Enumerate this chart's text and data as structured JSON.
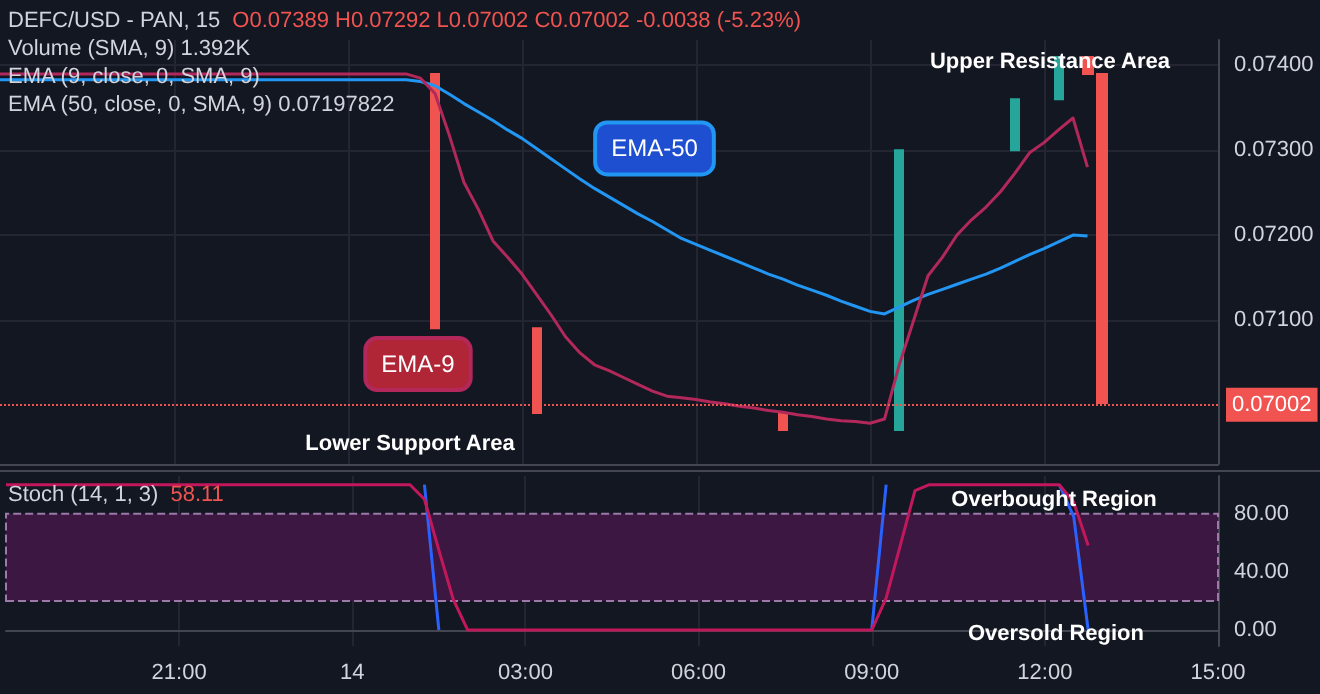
{
  "chart_data": [
    {
      "type": "candlestick",
      "title": "DEFC/USD - PAN, 15",
      "annotations": [
        "O0.07389 H0.07292 L0.07002 C0.07002 -0.0038 (-5.23%)",
        "Volume (SMA, 9) 1.392K",
        "EMA (9, close, 0, SMA, 9)",
        "EMA (50, close, 0, SMA, 9) 0.07197822",
        "Upper Resistance Area",
        "Lower Support Area"
      ],
      "categories": [
        null,
        null,
        null,
        null,
        null,
        null,
        null,
        null,
        null,
        null,
        null,
        null,
        null,
        null,
        null,
        null,
        null,
        null,
        null,
        null,
        null,
        null,
        null,
        null,
        null,
        null,
        null,
        null,
        null,
        null,
        null,
        null,
        null,
        null,
        null,
        null,
        null,
        null,
        null,
        null,
        null,
        null,
        null,
        null,
        null,
        null,
        null,
        null,
        null,
        null,
        null,
        null,
        null,
        null,
        null,
        null,
        null,
        null,
        null,
        null,
        null,
        null,
        null,
        null,
        null,
        null,
        null,
        null,
        null,
        null,
        null,
        null,
        null,
        null,
        null,
        null,
        null,
        null,
        null,
        null,
        null,
        null,
        null,
        null,
        null
      ],
      "ohlc": [
        null,
        null,
        null,
        null,
        null,
        null,
        null,
        null,
        null,
        null,
        null,
        null,
        null,
        null,
        null,
        null,
        null,
        null,
        null,
        null,
        null,
        null,
        null,
        null,
        null,
        null,
        null,
        null,
        null,
        null,
        [
          0.0739,
          0.0739,
          0.0709,
          0.0709
        ],
        null,
        null,
        null,
        null,
        null,
        null,
        [
          0.0709,
          0.0709,
          0.0699,
          0.0699
        ],
        null,
        null,
        null,
        null,
        null,
        null,
        null,
        null,
        null,
        null,
        null,
        null,
        null,
        null,
        null,
        null,
        [
          0.0699,
          0.0699,
          0.0697,
          0.0697
        ],
        null,
        null,
        null,
        null,
        null,
        null,
        null,
        [
          0.0697,
          0.073,
          0.0697,
          0.073
        ],
        null,
        null,
        null,
        null,
        null,
        null,
        null,
        [
          0.073,
          0.0736,
          0.073,
          0.0736
        ],
        null,
        null,
        [
          0.0736,
          0.0741,
          0.0736,
          0.0741
        ],
        null,
        [
          0.0741,
          0.0741,
          0.0739,
          0.0739
        ],
        [
          0.0739,
          0.0739,
          0.07002,
          0.07002
        ],
        null,
        null,
        null,
        null,
        null,
        null,
        null,
        null
      ],
      "colors": [
        null,
        null,
        null,
        null,
        null,
        null,
        null,
        null,
        null,
        null,
        null,
        null,
        null,
        null,
        null,
        null,
        null,
        null,
        null,
        null,
        null,
        null,
        null,
        null,
        null,
        null,
        null,
        null,
        null,
        null,
        "#f05350",
        null,
        null,
        null,
        null,
        null,
        null,
        "#f05350",
        null,
        null,
        null,
        null,
        null,
        null,
        null,
        null,
        null,
        null,
        null,
        null,
        null,
        null,
        null,
        null,
        "#f05350",
        null,
        null,
        null,
        null,
        null,
        null,
        null,
        "#26a69a",
        null,
        null,
        null,
        null,
        null,
        null,
        null,
        "#26a69a",
        null,
        null,
        "#26a69a",
        null,
        "#f05350",
        "#f05350",
        null,
        null,
        null,
        null,
        null,
        null,
        null,
        null
      ],
      "series": [
        {
          "name": "EMA-50",
          "type": "line",
          "color": "#2196f3",
          "values": [
            0.07383,
            0.07383,
            0.07383,
            0.07383,
            0.07383,
            0.07383,
            0.07383,
            0.07383,
            0.07383,
            0.07383,
            0.07383,
            0.07383,
            0.07383,
            0.07383,
            0.07383,
            0.07383,
            0.07383,
            0.07383,
            0.07383,
            0.07383,
            0.07383,
            0.07383,
            0.07383,
            0.07383,
            0.07383,
            0.07383,
            0.07383,
            0.07383,
            0.07383,
            0.07381,
            0.07376,
            0.07366,
            0.07355,
            0.07345,
            0.07335,
            0.07324,
            0.07314,
            0.07302,
            0.0729,
            0.07278,
            0.07266,
            0.07255,
            0.07245,
            0.07235,
            0.07225,
            0.07216,
            0.07206,
            0.07196,
            0.07189,
            0.07182,
            0.07175,
            0.07168,
            0.07161,
            0.07154,
            0.07148,
            0.07141,
            0.07135,
            0.07129,
            0.07122,
            0.07116,
            0.0711,
            0.07107,
            0.07115,
            0.07123,
            0.0713,
            0.07136,
            0.07142,
            0.07148,
            0.07154,
            0.07161,
            0.07169,
            0.07177,
            0.07184,
            0.07192,
            0.072,
            0.07199,
            null,
            null,
            null,
            null,
            null,
            null,
            null,
            null,
            null
          ]
        },
        {
          "name": "EMA-9",
          "type": "line",
          "color": "#b2285a",
          "values": [
            0.0739,
            0.0739,
            0.0739,
            0.0739,
            0.0739,
            0.0739,
            0.0739,
            0.0739,
            0.0739,
            0.0739,
            0.0739,
            0.0739,
            0.0739,
            0.0739,
            0.0739,
            0.0739,
            0.0739,
            0.0739,
            0.0739,
            0.0739,
            0.0739,
            0.0739,
            0.0739,
            0.0739,
            0.0739,
            0.0739,
            0.0739,
            0.0739,
            0.0739,
            0.07385,
            0.07367,
            0.07317,
            0.07262,
            0.0723,
            0.07193,
            0.07174,
            0.07154,
            0.0713,
            0.07106,
            0.0708,
            0.07061,
            0.07047,
            0.0704,
            0.07032,
            0.07024,
            0.07016,
            0.0701,
            0.07008,
            0.07006,
            0.07003,
            0.07001,
            0.06998,
            0.06996,
            0.06993,
            0.06991,
            0.06988,
            0.06986,
            0.06983,
            0.06981,
            0.0698,
            0.06978,
            0.06983,
            0.07046,
            0.07099,
            0.07152,
            0.07174,
            0.072,
            0.07218,
            0.07233,
            0.07251,
            0.07273,
            0.07297,
            0.07309,
            0.07324,
            0.07338,
            0.0728,
            null,
            null,
            null,
            null,
            null,
            null,
            null,
            null,
            null
          ]
        }
      ],
      "ref_lines": [
        {
          "axis": "y",
          "value": 0.07002,
          "label": "0.07002",
          "color": "#f05350",
          "line_style": "dotted"
        }
      ],
      "ylim": [
        0.0693,
        0.0743
      ],
      "yticks": [
        {
          "value": 0.071,
          "label": "0.07100"
        },
        {
          "value": 0.072,
          "label": "0.07200"
        },
        {
          "value": 0.073,
          "label": "0.07300"
        },
        {
          "value": 0.074,
          "label": "0.07400"
        }
      ],
      "tick_labels": "y",
      "grid": true,
      "legend": false,
      "marker": "none"
    },
    {
      "type": "line",
      "title": "Stoch (14, 1, 3)",
      "annotations": [
        "58.11",
        "Overbought Region",
        "Oversold Region"
      ],
      "categories": [
        null,
        null,
        null,
        null,
        null,
        null,
        null,
        null,
        null,
        null,
        null,
        null,
        "21:00",
        null,
        null,
        null,
        null,
        null,
        null,
        null,
        null,
        null,
        null,
        null,
        "14",
        null,
        null,
        null,
        null,
        null,
        null,
        null,
        null,
        null,
        null,
        null,
        "03:00",
        null,
        null,
        null,
        null,
        null,
        null,
        null,
        null,
        null,
        null,
        null,
        "06:00",
        null,
        null,
        null,
        null,
        null,
        null,
        null,
        null,
        null,
        null,
        null,
        "09:00",
        null,
        null,
        null,
        null,
        null,
        null,
        null,
        null,
        null,
        null,
        null,
        "12:00",
        null,
        null,
        null,
        null,
        null,
        null,
        null,
        null,
        null,
        null,
        null,
        "15:00"
      ],
      "series": [
        {
          "color": "#2962ff",
          "values": [
            null,
            null,
            null,
            null,
            null,
            null,
            null,
            null,
            null,
            null,
            null,
            null,
            null,
            null,
            null,
            null,
            null,
            null,
            null,
            null,
            null,
            null,
            null,
            null,
            null,
            null,
            null,
            null,
            null,
            100,
            0,
            null,
            null,
            null,
            null,
            null,
            null,
            null,
            null,
            null,
            null,
            null,
            null,
            null,
            null,
            null,
            null,
            null,
            null,
            null,
            null,
            null,
            null,
            null,
            null,
            null,
            null,
            null,
            null,
            null,
            0,
            100,
            null,
            null,
            null,
            null,
            null,
            null,
            null,
            null,
            null,
            null,
            null,
            100,
            78,
            0,
            null,
            null,
            null,
            null,
            null,
            null,
            null,
            null,
            null
          ]
        },
        {
          "color": "#c2185b",
          "values": [
            100,
            100,
            100,
            100,
            100,
            100,
            100,
            100,
            100,
            100,
            100,
            100,
            100,
            100,
            100,
            100,
            100,
            100,
            100,
            100,
            100,
            100,
            100,
            100,
            100,
            100,
            100,
            100,
            100,
            90,
            55,
            21,
            0,
            0,
            0,
            0,
            0,
            0,
            0,
            0,
            0,
            0,
            0,
            0,
            0,
            0,
            0,
            0,
            0,
            0,
            0,
            0,
            0,
            0,
            0,
            0,
            0,
            0,
            0,
            0,
            0,
            22,
            59,
            96,
            100,
            100,
            100,
            100,
            100,
            100,
            100,
            100,
            100,
            100,
            88,
            58.11,
            null,
            null,
            null,
            null,
            null,
            null,
            null,
            null,
            null
          ]
        }
      ],
      "bands": [
        {
          "axis": "y",
          "from": 20,
          "to": 80,
          "color": "#3b1742"
        }
      ],
      "ylim": [
        -11,
        106
      ],
      "yticks": [
        {
          "value": 0,
          "label": "0.00"
        },
        {
          "value": 40,
          "label": "40.00"
        },
        {
          "value": 80,
          "label": "80.00"
        }
      ],
      "grid": true,
      "legend": false,
      "marker": "none"
    }
  ]
}
